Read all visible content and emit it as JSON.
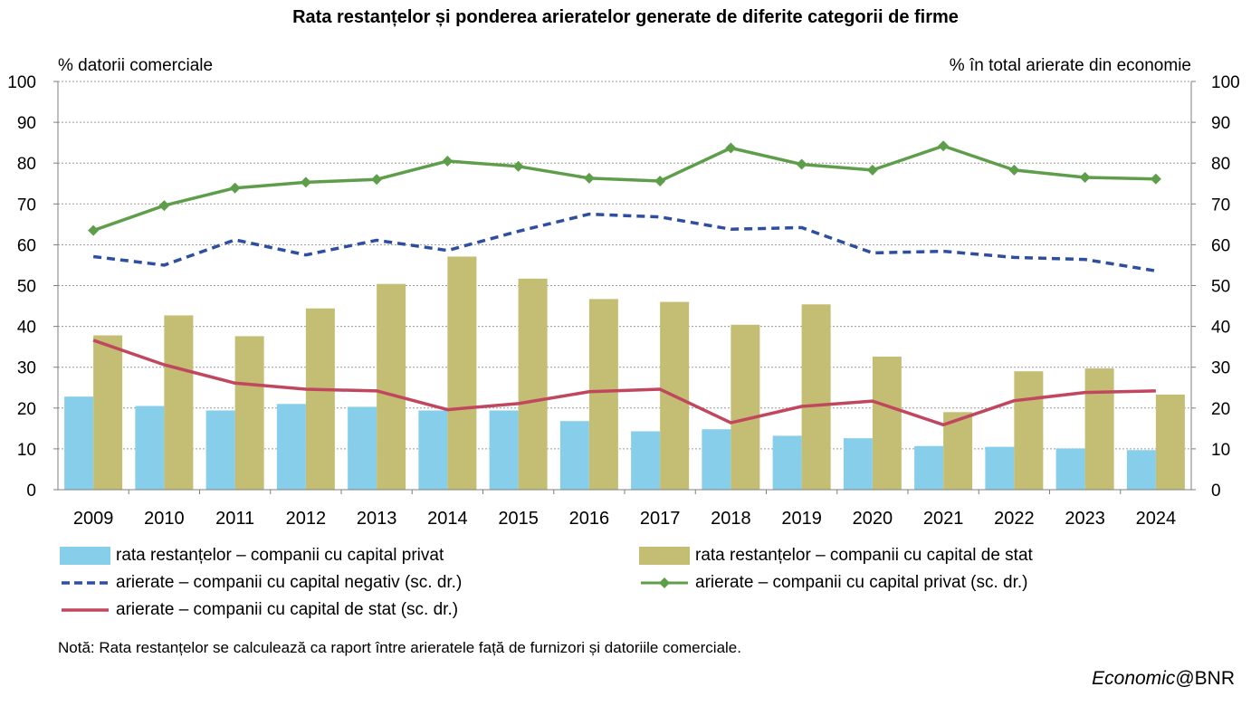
{
  "title": "Rata restanțelor și ponderea arieratelor generate de diferite categorii de firme",
  "note": "Notă: Rata restanțelor se calculează ca raport între arieratele față de furnizori și datoriile comerciale.",
  "brand": {
    "prefix": "Economic",
    "suffix": "@BNR"
  },
  "chart_data": {
    "type": "bar",
    "categories": [
      "2009",
      "2010",
      "2011",
      "2012",
      "2013",
      "2014",
      "2015",
      "2016",
      "2017",
      "2018",
      "2019",
      "2020",
      "2021",
      "2022",
      "2023",
      "2024"
    ],
    "ylabel": "% datorii comerciale",
    "y2label": "% în total arierate din economie",
    "ylim": [
      0,
      100
    ],
    "y2lim": [
      0,
      100
    ],
    "yticks": [
      0,
      10,
      20,
      30,
      40,
      50,
      60,
      70,
      80,
      90,
      100
    ],
    "grid": true,
    "legend_position": "bottom",
    "series": [
      {
        "name": "rata restanțelor – companii cu capital privat",
        "kind": "bar",
        "axis": "left",
        "color": "#87CEEB",
        "values": [
          22.8,
          20.5,
          19.4,
          21.0,
          20.3,
          19.4,
          19.4,
          16.8,
          14.3,
          14.8,
          13.2,
          12.6,
          10.7,
          10.5,
          10.1,
          9.7
        ]
      },
      {
        "name": "rata restanțelor – companii cu capital de stat",
        "kind": "bar",
        "axis": "left",
        "color": "#C3BE73",
        "values": [
          37.8,
          42.7,
          37.6,
          44.4,
          50.4,
          57.1,
          51.7,
          46.7,
          46.0,
          40.4,
          45.4,
          32.6,
          19.0,
          29.0,
          29.7,
          23.3
        ]
      },
      {
        "name": "arierate – companii cu capital negativ (sc. dr.)",
        "kind": "line",
        "style": "dashed",
        "axis": "right",
        "color": "#2E4FA0",
        "values": [
          57.1,
          55.0,
          61.2,
          57.5,
          61.1,
          58.6,
          63.3,
          67.5,
          66.8,
          63.8,
          64.2,
          58.0,
          58.4,
          56.9,
          56.4,
          53.6
        ]
      },
      {
        "name": "arierate – companii cu capital privat (sc. dr.)",
        "kind": "line",
        "style": "solid-diamond",
        "axis": "right",
        "color": "#5E9E4A",
        "values": [
          63.5,
          69.6,
          73.9,
          75.3,
          76.0,
          80.5,
          79.2,
          76.3,
          75.6,
          83.7,
          79.7,
          78.3,
          84.2,
          78.3,
          76.5,
          76.1
        ]
      },
      {
        "name": "arierate – companii cu capital de stat (sc. dr.)",
        "kind": "line",
        "style": "solid",
        "axis": "right",
        "color": "#C0475E",
        "values": [
          36.6,
          30.6,
          26.1,
          24.6,
          24.2,
          19.6,
          21.1,
          24.0,
          24.6,
          16.4,
          20.4,
          21.7,
          15.9,
          21.8,
          23.8,
          24.2
        ]
      }
    ]
  }
}
